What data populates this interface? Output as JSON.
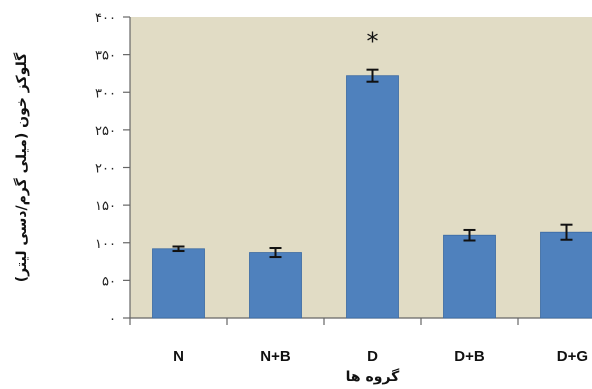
{
  "chart_data": {
    "type": "bar",
    "categories": [
      "N",
      "N+B",
      "D",
      "D+B",
      "D+G"
    ],
    "values": [
      92,
      87,
      322,
      110,
      114
    ],
    "errors": [
      3,
      6,
      8,
      7,
      10
    ],
    "annotations": [
      {
        "category": "D",
        "text": "*"
      }
    ],
    "ylim": [
      0,
      400
    ],
    "yticks": [
      0,
      50,
      100,
      150,
      200,
      250,
      300,
      350,
      400
    ],
    "ytick_labels": [
      "۰",
      "۵۰",
      "۱۰۰",
      "۱۵۰",
      "۲۰۰",
      "۲۵۰",
      "۳۰۰",
      "۳۵۰",
      "۴۰۰"
    ],
    "xlabel": "گروه ها",
    "ylabel": "گلوکز خون (میلی گرم/دسی لیتر)",
    "grid": false,
    "legend": "none",
    "colors": {
      "plot_background": "#E1DCC5",
      "bar": "#4F81BD",
      "bar_edge": "#3A6AA3",
      "axis": "#666666",
      "error_bar": "#111111"
    }
  }
}
